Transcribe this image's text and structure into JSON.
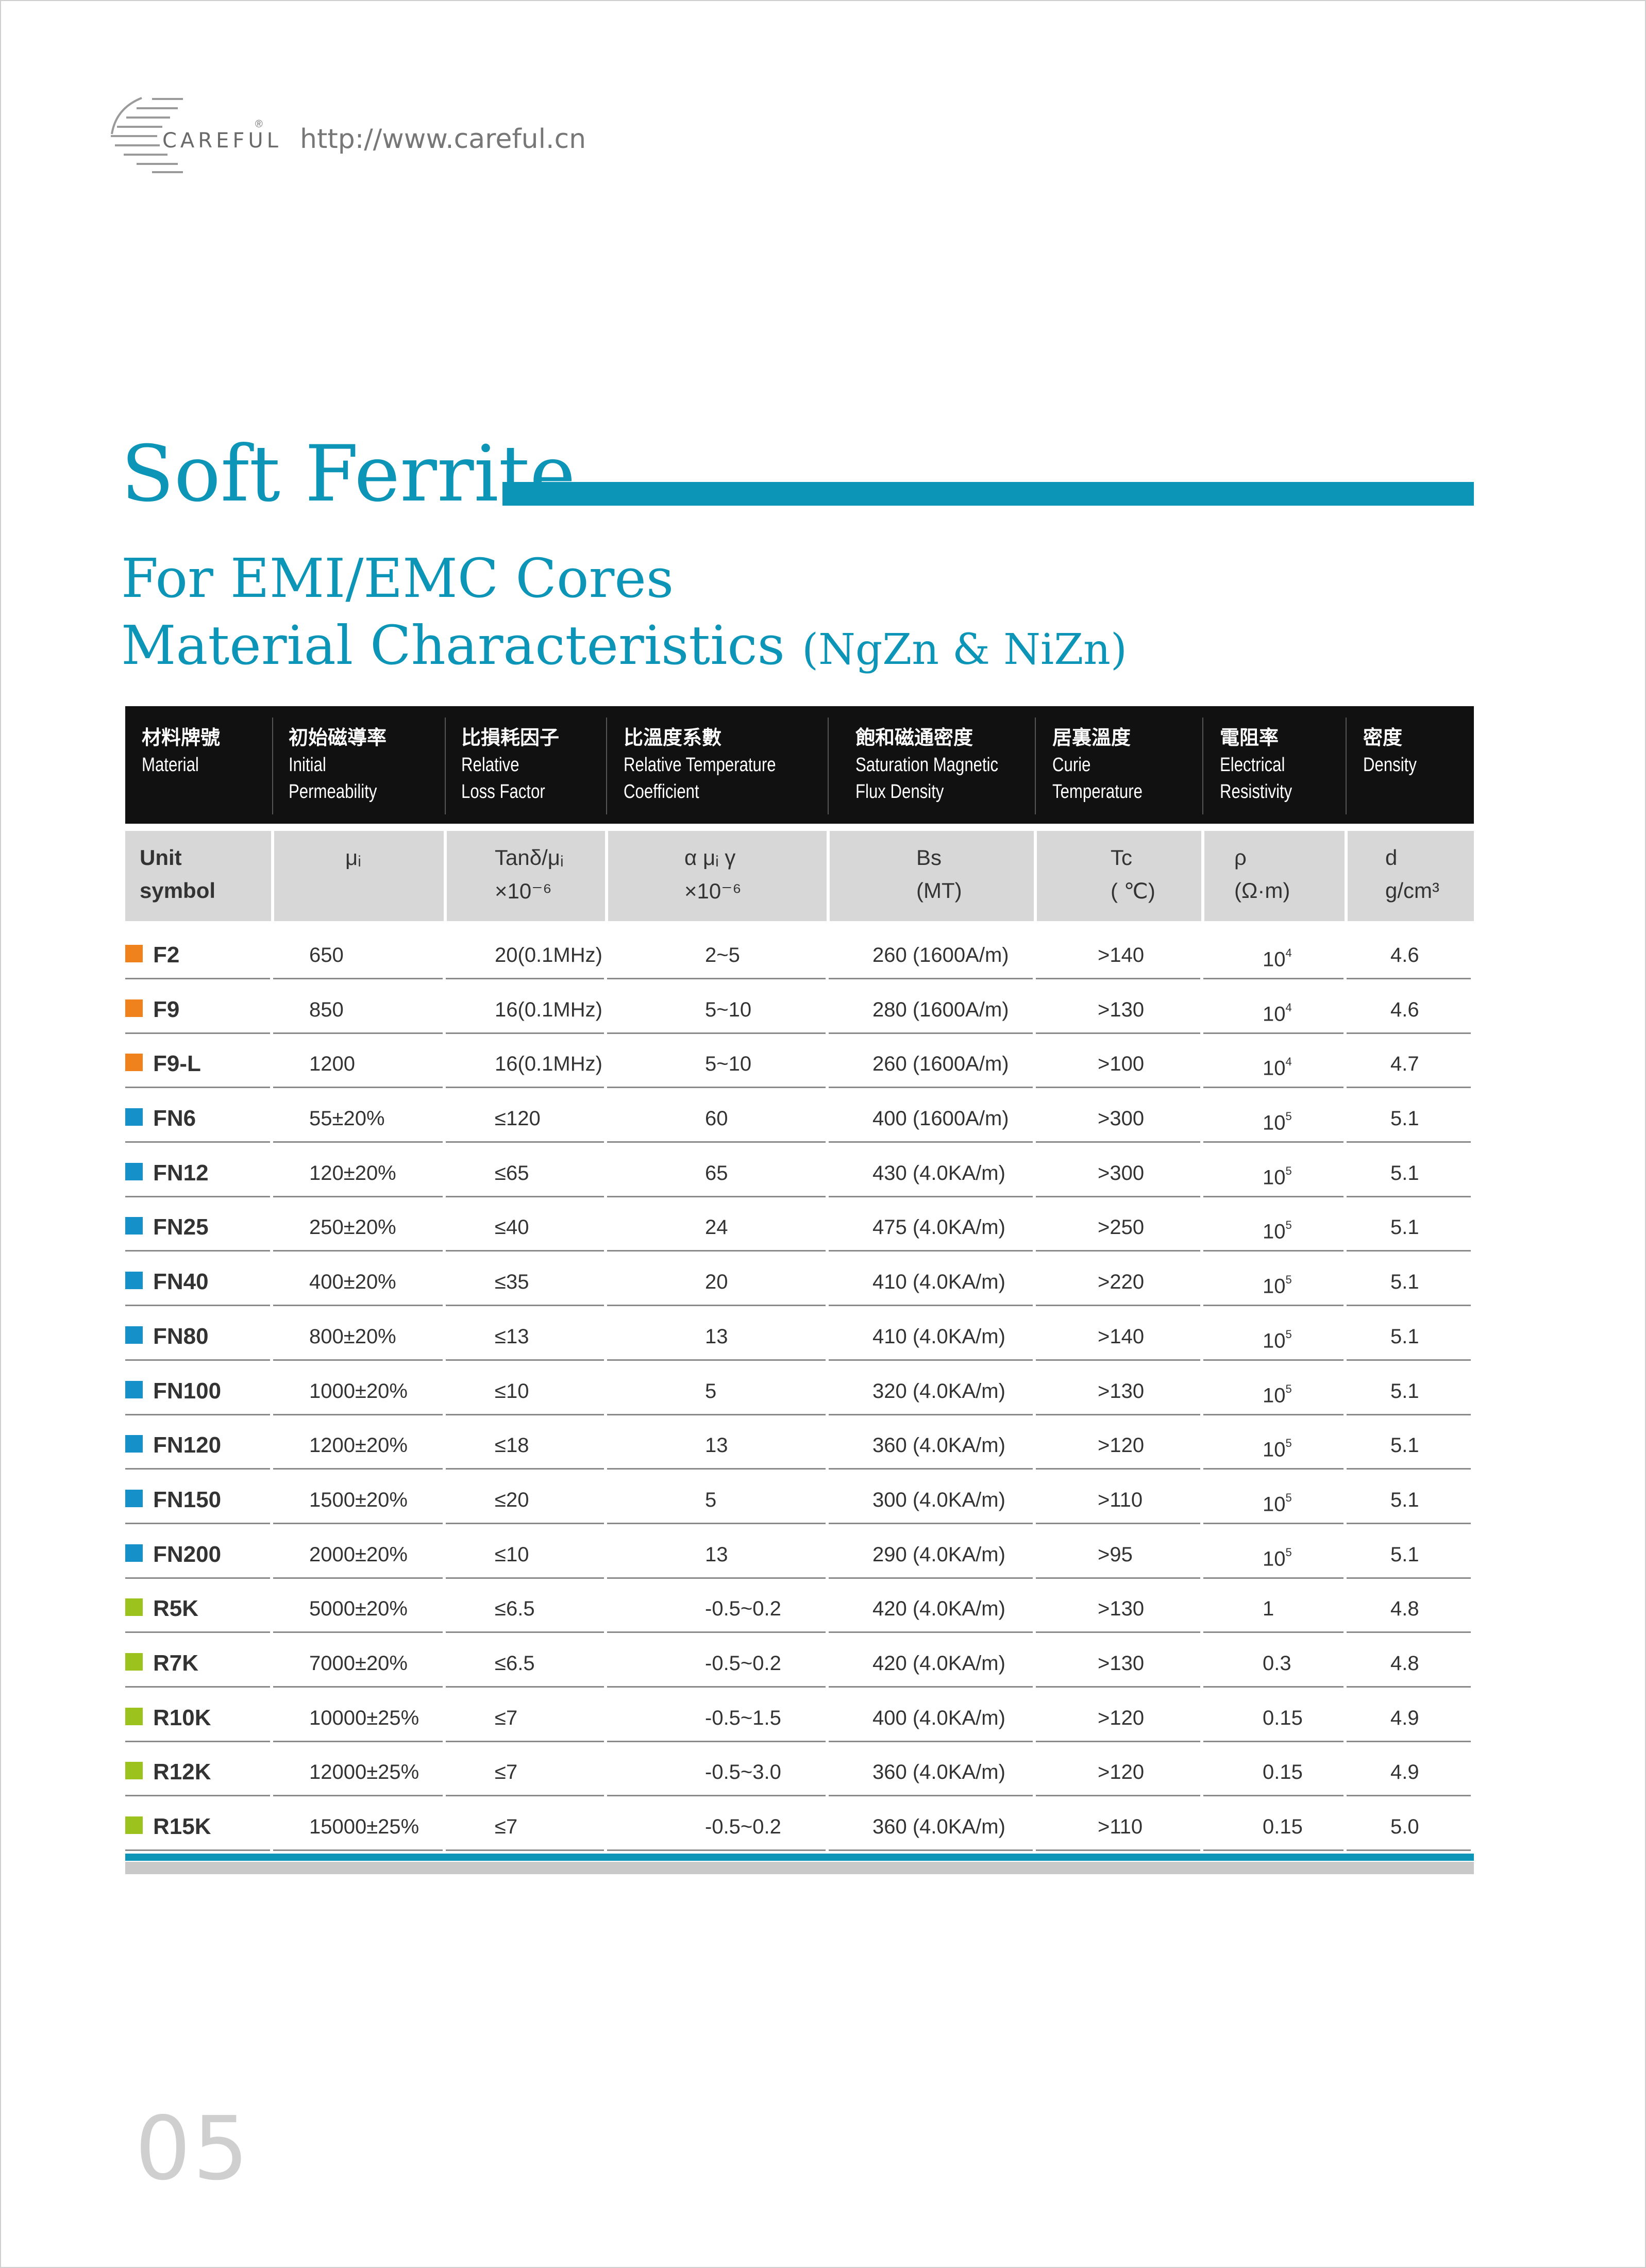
{
  "header": {
    "brand": "CAREFUL",
    "reg_mark": "®",
    "url": "http://www.careful.cn"
  },
  "titles": {
    "main": "Soft Ferrite",
    "sub1": "For EMI/EMC Cores",
    "sub2": "Material Characteristics",
    "sub2_paren": "(NgZn & NiZn)"
  },
  "table": {
    "columns": [
      {
        "zh": "材料牌號",
        "en": [
          "Material"
        ]
      },
      {
        "zh": "初始磁導率",
        "en": [
          "Initial",
          "Permeability"
        ]
      },
      {
        "zh": "比損耗因子",
        "en": [
          "Relative",
          "Loss Factor"
        ]
      },
      {
        "zh": "比溫度系數",
        "en": [
          "Relative Temperature",
          "Coefficient"
        ]
      },
      {
        "zh": "飽和磁通密度",
        "en": [
          "Saturation Magnetic",
          "Flux Density"
        ]
      },
      {
        "zh": "居裏溫度",
        "en": [
          "Curie",
          "Temperature"
        ]
      },
      {
        "zh": "電阻率",
        "en": [
          "Electrical",
          "Resistivity"
        ]
      },
      {
        "zh": "密度",
        "en": [
          "Density"
        ]
      }
    ],
    "units": [
      {
        "l1": "Unit",
        "l2": "symbol"
      },
      {
        "l1": "μᵢ",
        "l2": ""
      },
      {
        "l1": "Tanδ/μᵢ",
        "l2": "×10⁻⁶"
      },
      {
        "l1": "α μᵢ γ",
        "l2": "×10⁻⁶"
      },
      {
        "l1": "Bs",
        "l2": "(MT)"
      },
      {
        "l1": "Tc",
        "l2": "( ℃)"
      },
      {
        "l1": "ρ",
        "l2": "(Ω·m)"
      },
      {
        "l1": "d",
        "l2": "g/cm³"
      }
    ],
    "rows": [
      {
        "material": "F2",
        "color": "#f0821e",
        "mu": "650",
        "tan": "20(0.1MHz)",
        "alpha": "2~5",
        "bs": "260 (1600A/m)",
        "tc": ">140",
        "rho": "10",
        "rho_exp": "4",
        "d": "4.6"
      },
      {
        "material": "F9",
        "color": "#f0821e",
        "mu": "850",
        "tan": "16(0.1MHz)",
        "alpha": "5~10",
        "bs": "280 (1600A/m)",
        "tc": ">130",
        "rho": "10",
        "rho_exp": "4",
        "d": "4.6"
      },
      {
        "material": "F9-L",
        "color": "#f0821e",
        "mu": "1200",
        "tan": "16(0.1MHz)",
        "alpha": "5~10",
        "bs": "260 (1600A/m)",
        "tc": ">100",
        "rho": "10",
        "rho_exp": "4",
        "d": "4.7"
      },
      {
        "material": "FN6",
        "color": "#1690c9",
        "mu": "55±20%",
        "tan": "≤120",
        "alpha": "60",
        "bs": "400 (1600A/m)",
        "tc": ">300",
        "rho": "10",
        "rho_exp": "5",
        "d": "5.1"
      },
      {
        "material": "FN12",
        "color": "#1690c9",
        "mu": "120±20%",
        "tan": "≤65",
        "alpha": "65",
        "bs": "430 (4.0KA/m)",
        "tc": ">300",
        "rho": "10",
        "rho_exp": "5",
        "d": "5.1"
      },
      {
        "material": "FN25",
        "color": "#1690c9",
        "mu": "250±20%",
        "tan": "≤40",
        "alpha": "24",
        "bs": "475 (4.0KA/m)",
        "tc": ">250",
        "rho": "10",
        "rho_exp": "5",
        "d": "5.1"
      },
      {
        "material": "FN40",
        "color": "#1690c9",
        "mu": "400±20%",
        "tan": "≤35",
        "alpha": "20",
        "bs": "410 (4.0KA/m)",
        "tc": ">220",
        "rho": "10",
        "rho_exp": "5",
        "d": "5.1"
      },
      {
        "material": "FN80",
        "color": "#1690c9",
        "mu": "800±20%",
        "tan": "≤13",
        "alpha": "13",
        "bs": "410 (4.0KA/m)",
        "tc": ">140",
        "rho": "10",
        "rho_exp": "5",
        "d": "5.1"
      },
      {
        "material": "FN100",
        "color": "#1690c9",
        "mu": "1000±20%",
        "tan": "≤10",
        "alpha": "5",
        "bs": "320 (4.0KA/m)",
        "tc": ">130",
        "rho": "10",
        "rho_exp": "5",
        "d": "5.1"
      },
      {
        "material": "FN120",
        "color": "#1690c9",
        "mu": "1200±20%",
        "tan": "≤18",
        "alpha": "13",
        "bs": "360 (4.0KA/m)",
        "tc": ">120",
        "rho": "10",
        "rho_exp": "5",
        "d": "5.1"
      },
      {
        "material": "FN150",
        "color": "#1690c9",
        "mu": "1500±20%",
        "tan": "≤20",
        "alpha": "5",
        "bs": "300 (4.0KA/m)",
        "tc": ">110",
        "rho": "10",
        "rho_exp": "5",
        "d": "5.1"
      },
      {
        "material": "FN200",
        "color": "#1690c9",
        "mu": "2000±20%",
        "tan": "≤10",
        "alpha": "13",
        "bs": "290 (4.0KA/m)",
        "tc": ">95",
        "rho": "10",
        "rho_exp": "5",
        "d": "5.1"
      },
      {
        "material": "R5K",
        "color": "#9cc31d",
        "mu": "5000±20%",
        "tan": "≤6.5",
        "alpha": "-0.5~0.2",
        "bs": "420 (4.0KA/m)",
        "tc": ">130",
        "rho": "1",
        "rho_exp": "",
        "d": "4.8"
      },
      {
        "material": "R7K",
        "color": "#9cc31d",
        "mu": "7000±20%",
        "tan": "≤6.5",
        "alpha": "-0.5~0.2",
        "bs": "420 (4.0KA/m)",
        "tc": ">130",
        "rho": "0.3",
        "rho_exp": "",
        "d": "4.8"
      },
      {
        "material": "R10K",
        "color": "#9cc31d",
        "mu": "10000±25%",
        "tan": "≤7",
        "alpha": "-0.5~1.5",
        "bs": "400 (4.0KA/m)",
        "tc": ">120",
        "rho": "0.15",
        "rho_exp": "",
        "d": "4.9"
      },
      {
        "material": "R12K",
        "color": "#9cc31d",
        "mu": "12000±25%",
        "tan": "≤7",
        "alpha": "-0.5~3.0",
        "bs": "360 (4.0KA/m)",
        "tc": ">120",
        "rho": "0.15",
        "rho_exp": "",
        "d": "4.9"
      },
      {
        "material": "R15K",
        "color": "#9cc31d",
        "mu": "15000±25%",
        "tan": "≤7",
        "alpha": "-0.5~0.2",
        "bs": "360 (4.0KA/m)",
        "tc": ">110",
        "rho": "0.15",
        "rho_exp": "",
        "d": "5.0"
      }
    ]
  },
  "footer": {
    "page_number": "05"
  },
  "colors": {
    "accent": "#0c95b6",
    "header_bg": "#111111",
    "unit_bg": "#d7d7d7"
  }
}
